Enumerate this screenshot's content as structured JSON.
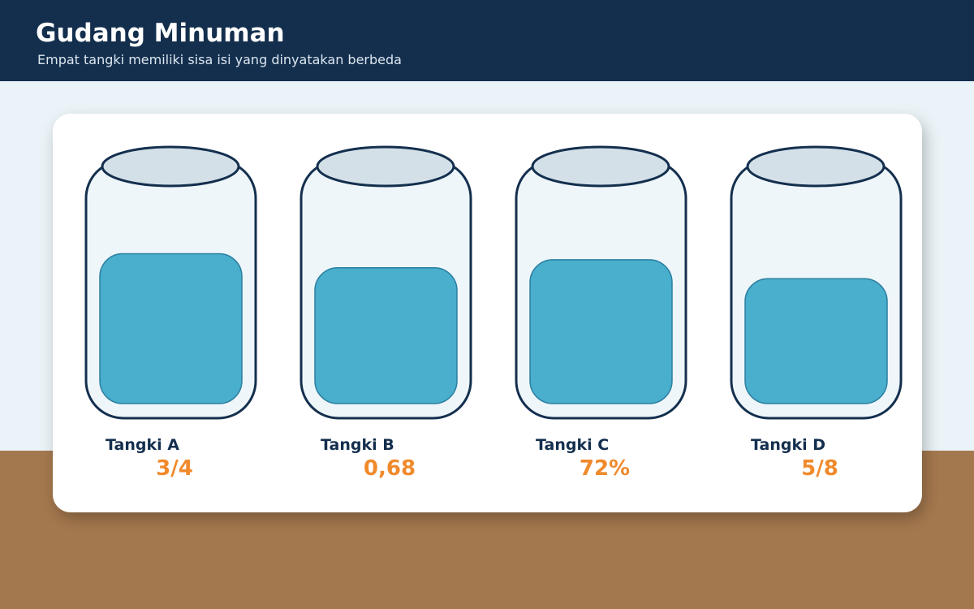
{
  "header": {
    "title": "Gudang Minuman",
    "subtitle": "Empat tangki memiliki sisa isi yang dinyatakan berbeda"
  },
  "tanks": [
    {
      "name": "Tangki A",
      "value": 0.75,
      "value_label": "3/4"
    },
    {
      "name": "Tangki B",
      "value": 0.68,
      "value_label": "0,68"
    },
    {
      "name": "Tangki C",
      "value": 0.72,
      "value_label": "72%"
    },
    {
      "name": "Tangki D",
      "value": 0.625,
      "value_label": "5/8"
    }
  ]
}
